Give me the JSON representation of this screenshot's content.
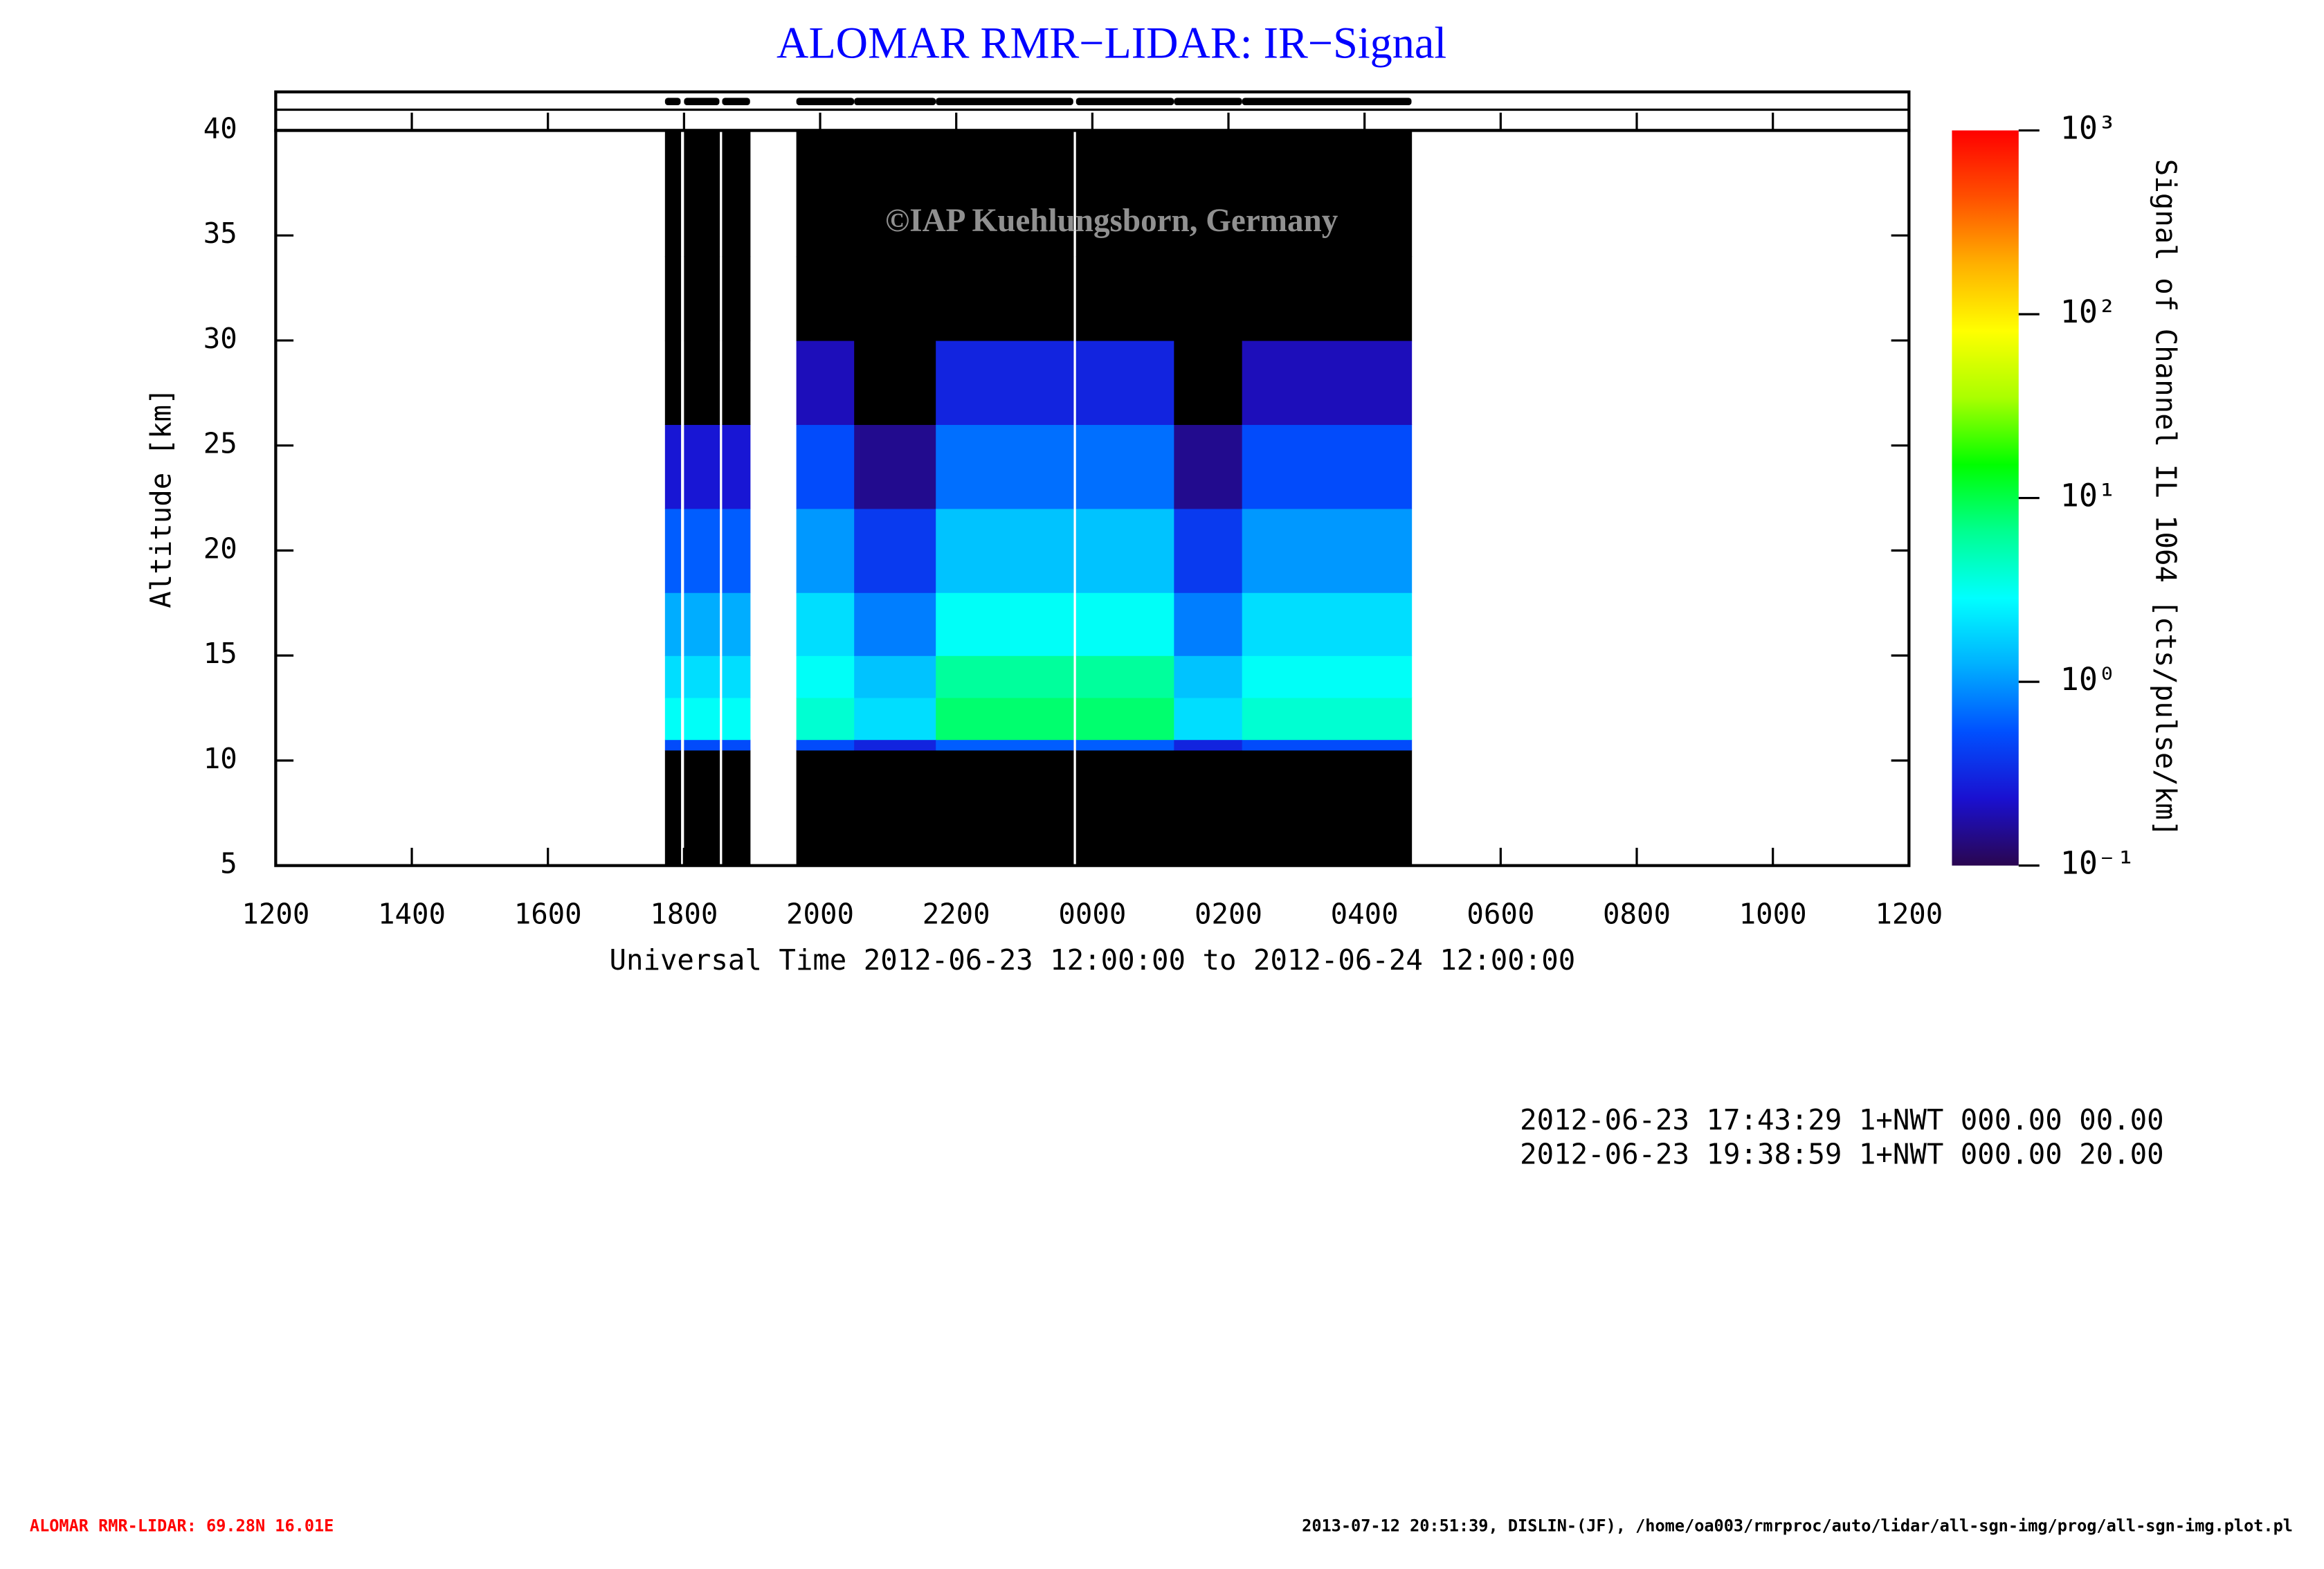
{
  "chart_data": {
    "type": "heatmap",
    "title": "ALOMAR RMR−LIDAR: IR−Signal",
    "x_label": "Universal Time 2012-06-23 12:00:00 to 2012-06-24 12:00:00",
    "y_label": "Altitude [km]",
    "colorbar_label": "Signal of Channel IL 1064 [cts/pulse/km]",
    "watermark": "©IAP Kuehlungsborn, Germany",
    "xlim": [
      12,
      36
    ],
    "xticks": [
      {
        "value": 12,
        "label": "1200"
      },
      {
        "value": 14,
        "label": "1400"
      },
      {
        "value": 16,
        "label": "1600"
      },
      {
        "value": 18,
        "label": "1800"
      },
      {
        "value": 20,
        "label": "2000"
      },
      {
        "value": 22,
        "label": "2200"
      },
      {
        "value": 24,
        "label": "0000"
      },
      {
        "value": 26,
        "label": "0200"
      },
      {
        "value": 28,
        "label": "0400"
      },
      {
        "value": 30,
        "label": "0600"
      },
      {
        "value": 32,
        "label": "0800"
      },
      {
        "value": 34,
        "label": "1000"
      },
      {
        "value": 36,
        "label": "1200"
      }
    ],
    "ylim": [
      5,
      40
    ],
    "yticks": [
      5,
      10,
      15,
      20,
      25,
      30,
      35,
      40
    ],
    "zlim": [
      0.1,
      1000
    ],
    "zscale": "log",
    "zticks": [
      {
        "value": 0.1,
        "label": "10⁻¹"
      },
      {
        "value": 1,
        "label": "10⁰"
      },
      {
        "value": 10,
        "label": "10¹"
      },
      {
        "value": 100,
        "label": "10²"
      },
      {
        "value": 1000,
        "label": "10³"
      }
    ],
    "colormap": [
      "#2a0650",
      "#1a10d0",
      "#0050ff",
      "#00b0ff",
      "#00ffff",
      "#00ff90",
      "#00ff00",
      "#aaff00",
      "#ffff00",
      "#ffb000",
      "#ff5000",
      "#ff0000"
    ],
    "below_color": "#000000",
    "x_bins": [
      17.72,
      17.95,
      18.0,
      18.52,
      18.56,
      18.97,
      19.65,
      20.5,
      21.7,
      23.72,
      23.76,
      25.2,
      26.2,
      28.69
    ],
    "y_bins": [
      5,
      10.5,
      11,
      13,
      15,
      18,
      22,
      26,
      30,
      34,
      40
    ],
    "values": [
      [
        0.01,
        0.5,
        3,
        2,
        1.2,
        0.6,
        0.25,
        0.01,
        0.01,
        0.01
      ],
      [
        null,
        null,
        null,
        null,
        null,
        null,
        null,
        null,
        null,
        null
      ],
      [
        0.01,
        0.5,
        3,
        2,
        1.2,
        0.6,
        0.25,
        0.01,
        0.01,
        0.01
      ],
      [
        null,
        null,
        null,
        null,
        null,
        null,
        null,
        null,
        null,
        null
      ],
      [
        0.01,
        0.5,
        3,
        2,
        1.2,
        0.6,
        0.25,
        0.01,
        0.01,
        0.01
      ],
      [
        null,
        null,
        null,
        null,
        null,
        null,
        null,
        null,
        null,
        null
      ],
      [
        0.01,
        0.5,
        4,
        3,
        2,
        1,
        0.5,
        0.2,
        0.01,
        0.01
      ],
      [
        0.01,
        0.3,
        2,
        1.5,
        0.8,
        0.4,
        0.15,
        0.01,
        0.01,
        0.01
      ],
      [
        0.01,
        0.6,
        8,
        6,
        3,
        1.5,
        0.7,
        0.3,
        0.01,
        0.01
      ],
      [
        null,
        null,
        null,
        null,
        null,
        null,
        null,
        null,
        null,
        null
      ],
      [
        0.01,
        0.6,
        8,
        6,
        3,
        1.5,
        0.7,
        0.3,
        0.01,
        0.01
      ],
      [
        0.01,
        0.3,
        2,
        1.5,
        0.8,
        0.4,
        0.15,
        0.01,
        0.01,
        0.01
      ],
      [
        0.01,
        0.5,
        4,
        3,
        2,
        1,
        0.5,
        0.2,
        0.01,
        0.01
      ]
    ]
  },
  "info_lines": [
    "2012-06-23 17:43:29 1+NWT 000.00 00.00",
    "2012-06-23 19:38:59 1+NWT 000.00 20.00"
  ],
  "footer": {
    "left": "ALOMAR RMR-LIDAR: 69.28N 16.01E",
    "right": "2013-07-12 20:51:39, DISLIN-(JF), /home/oa003/rmrproc/auto/lidar/all-sgn-img/prog/all-sgn-img.plot.pl"
  }
}
